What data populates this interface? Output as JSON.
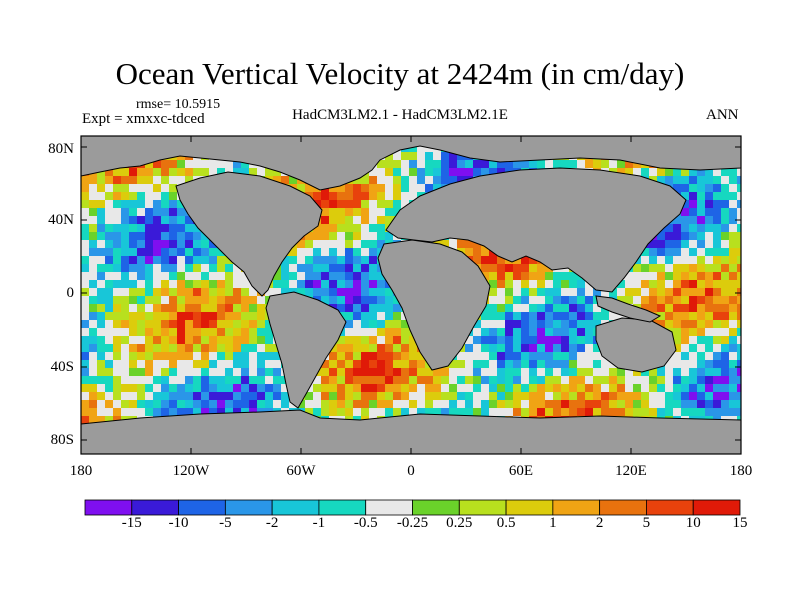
{
  "figure": {
    "title": "Ocean Vertical Velocity at 2424m (in cm/day)",
    "rmse": "rmse= 10.5915",
    "expt": "Expt = xmxxc-tdced",
    "subtitle": "HadCM3LM2.1 - HadCM3LM2.1E",
    "season": "ANN"
  },
  "axes": {
    "y_ticks": [
      "80N",
      "40N",
      "0",
      "40S",
      "80S"
    ],
    "x_ticks": [
      "180",
      "120W",
      "60W",
      "0",
      "60E",
      "120E",
      "180"
    ]
  },
  "colorbar": {
    "colors": [
      "#7f0ff0",
      "#3a1ad8",
      "#1e64e6",
      "#2a96e8",
      "#18c6d8",
      "#16d8c0",
      "#e8e8e8",
      "#6ad22a",
      "#b8e01e",
      "#dccc0c",
      "#f0a414",
      "#e8720e",
      "#e8420c",
      "#e01a08"
    ],
    "labels": [
      "-15",
      "-10",
      "-5",
      "-2",
      "-1",
      "-0.5",
      "-0.25",
      "0.25",
      "0.5",
      "1",
      "2",
      "5",
      "10",
      "15"
    ]
  },
  "colors": {
    "land": "#9b9b9b",
    "coast": "#000000"
  }
}
